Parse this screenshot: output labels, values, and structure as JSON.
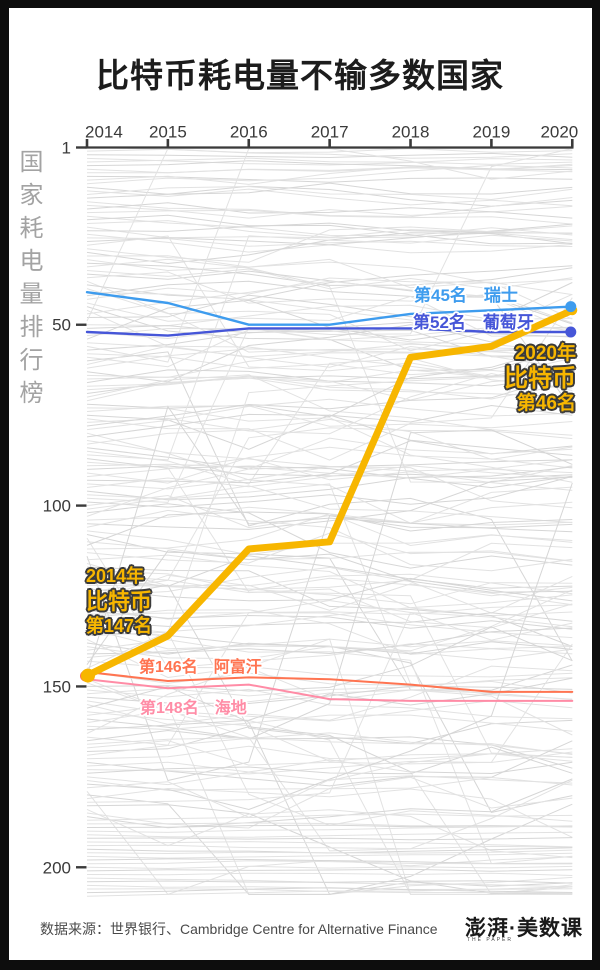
{
  "title": "比特币耗电量不输多数国家",
  "y_axis_title": "国家耗电量排行榜",
  "annotations": {
    "switzerland": "第45名　瑞士",
    "portugal": "第52名　葡萄牙",
    "btc_2020": {
      "year": "2020年",
      "name": "比特币",
      "rank": "第46名"
    },
    "btc_2014": {
      "year": "2014年",
      "name": "比特币",
      "rank": "第147名"
    },
    "afghanistan": "第146名　阿富汗",
    "haiti": "第148名　海地"
  },
  "footer": {
    "source_label": "数据来源：",
    "source_text": "世界银行、Cambridge Centre for Alternative Finance",
    "logo": "澎湃·美数课",
    "logo_sub": "THE PAPER"
  },
  "colors": {
    "bitcoin": "#F7B600",
    "switzerland": "#3E9CEE",
    "portugal": "#4656D8",
    "afghanistan": "#FF7451",
    "haiti": "#FF8CA6",
    "mesh_gray": "#e2e2e2",
    "axis": "#3a3a3a"
  },
  "chart_data": {
    "type": "line",
    "subtype": "bump-rank-chart",
    "title": "比特币耗电量不输多数国家",
    "x": [
      2014,
      2015,
      2016,
      2017,
      2018,
      2019,
      2020
    ],
    "ylabel": "国家耗电量排行榜",
    "y_ticks": [
      1,
      50,
      100,
      150,
      200
    ],
    "y_axis_inverted": true,
    "y_range": [
      1,
      208
    ],
    "grid": false,
    "legend_position": "inline-annotations",
    "background_note": "约200条浅灰色细折线，表示其他国家耗电量排名变化（装饰性背景）",
    "series": [
      {
        "id": "afghanistan",
        "name": "阿富汗",
        "color": "#FF7451",
        "width": 2,
        "ranks": [
          146,
          148.5,
          147.5,
          148,
          149.5,
          151.5,
          151.5
        ],
        "dot_start": true,
        "dot_end": false
      },
      {
        "id": "haiti",
        "name": "海地",
        "color": "#FF8CA6",
        "width": 2,
        "ranks": [
          148,
          150.5,
          149.5,
          153.5,
          154,
          154,
          154
        ],
        "dot_start": false,
        "dot_end": false
      },
      {
        "id": "portugal",
        "name": "葡萄牙",
        "color": "#4656D8",
        "width": 2.4,
        "ranks": [
          52,
          53,
          51,
          51,
          51,
          52,
          52
        ],
        "dot_start": false,
        "dot_end": true
      },
      {
        "id": "switzerland",
        "name": "瑞士",
        "color": "#3E9CEE",
        "width": 2.4,
        "ranks": [
          41,
          44,
          50,
          50,
          47,
          46,
          45
        ],
        "dot_start": false,
        "dot_end": true
      },
      {
        "id": "bitcoin",
        "name": "比特币",
        "color": "#F7B600",
        "width": 7,
        "ranks": [
          147,
          136,
          112,
          110,
          59,
          56,
          46
        ],
        "dot_start": true,
        "dot_end": true
      }
    ]
  }
}
